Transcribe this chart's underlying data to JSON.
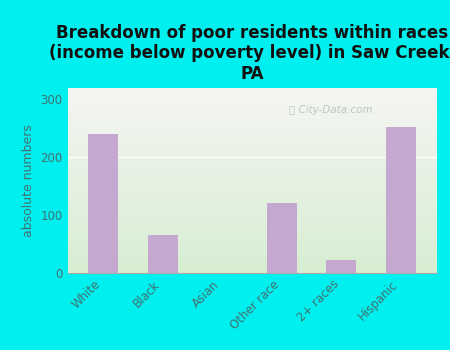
{
  "title": "Breakdown of poor residents within races\n(income below poverty level) in Saw Creek,\nPA",
  "categories": [
    "White",
    "Black",
    "Asian",
    "Other race",
    "2+ races",
    "Hispanic"
  ],
  "values": [
    240,
    65,
    0,
    120,
    22,
    252
  ],
  "bar_color": "#c4a8d0",
  "ylabel": "absolute numbers",
  "ylim": [
    0,
    320
  ],
  "yticks": [
    0,
    100,
    200,
    300
  ],
  "background_color": "#00efef",
  "plot_bg_topleft": "#f0f0ee",
  "plot_bg_bottomleft": "#d8ecd0",
  "plot_bg_topright": "#f8f8f5",
  "title_fontsize": 12,
  "axis_label_fontsize": 9,
  "tick_fontsize": 8.5,
  "tick_color": "#447070",
  "watermark": "City-Data.com",
  "gridline_color": "#d8d8d8"
}
